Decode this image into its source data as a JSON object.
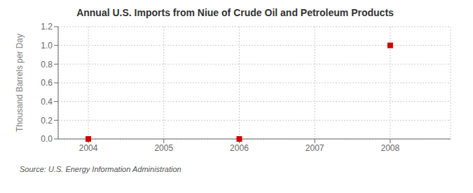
{
  "chart_data": {
    "type": "scatter",
    "title": "Annual U.S. Imports from Niue of Crude Oil and Petroleum Products",
    "ylabel": "Thousand Barrels per Day",
    "annotation": "Source: U.S. Energy Information Administration",
    "x": [
      2004,
      2006,
      2008
    ],
    "values": [
      0.0,
      0.0,
      1.0
    ],
    "color": "#cc0000",
    "marker": "square",
    "xlim": [
      2003.6,
      2008.8
    ],
    "xticks": [
      2004,
      2005,
      2006,
      2007,
      2008
    ],
    "ylim": [
      0.0,
      1.2
    ],
    "yticks": [
      {
        "value": 0.0,
        "label": "0.0"
      },
      0.2,
      0.4,
      0.6,
      0.8,
      {
        "value": 1.0,
        "label": "1.0"
      },
      1.2
    ],
    "grid": true
  }
}
